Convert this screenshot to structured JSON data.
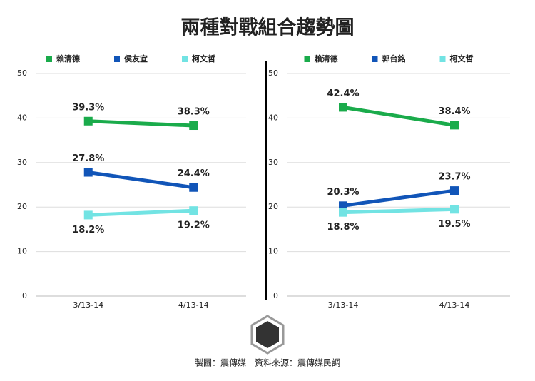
{
  "title": "兩種對戰組合趨勢圖",
  "footer": "製圖：震傳媒　資料來源：震傳媒民調",
  "chart_data": [
    {
      "type": "line",
      "categories": [
        "3/13-14",
        "4/13-14"
      ],
      "ylim": [
        0,
        50
      ],
      "yticks": [
        0,
        10,
        20,
        30,
        40,
        50
      ],
      "grid": true,
      "series": [
        {
          "name": "賴清德",
          "color": "#1aab4b",
          "values": [
            39.3,
            38.3
          ],
          "value_labels": [
            "39.3%",
            "38.3%"
          ]
        },
        {
          "name": "侯友宜",
          "color": "#1155b8",
          "values": [
            27.8,
            24.4
          ],
          "value_labels": [
            "27.8%",
            "24.4%"
          ]
        },
        {
          "name": "柯文哲",
          "color": "#72e3e3",
          "values": [
            18.2,
            19.2
          ],
          "value_labels": [
            "18.2%",
            "19.2%"
          ]
        }
      ]
    },
    {
      "type": "line",
      "categories": [
        "3/13-14",
        "4/13-14"
      ],
      "ylim": [
        0,
        50
      ],
      "yticks": [
        0,
        10,
        20,
        30,
        40,
        50
      ],
      "grid": true,
      "series": [
        {
          "name": "賴清德",
          "color": "#1aab4b",
          "values": [
            42.4,
            38.4
          ],
          "value_labels": [
            "42.4%",
            "38.4%"
          ]
        },
        {
          "name": "郭台銘",
          "color": "#1155b8",
          "values": [
            20.3,
            23.7
          ],
          "value_labels": [
            "20.3%",
            "23.7%"
          ]
        },
        {
          "name": "柯文哲",
          "color": "#72e3e3",
          "values": [
            18.8,
            19.5
          ],
          "value_labels": [
            "18.8%",
            "19.5%"
          ]
        }
      ]
    }
  ]
}
